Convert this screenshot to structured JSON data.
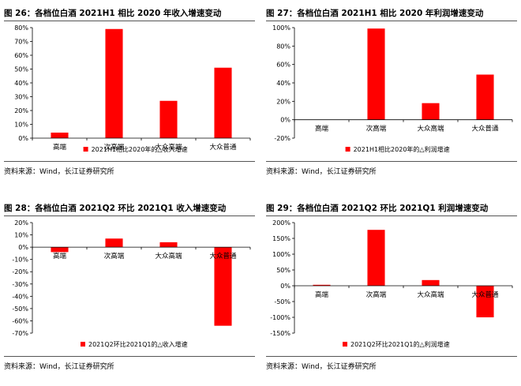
{
  "panels": [
    {
      "title": "图 26：各档位白酒 2021H1 相比 2020 年收入增速变动",
      "source": "资料来源：Wind，长江证券研究所",
      "chart_data": {
        "type": "bar",
        "categories": [
          "高端",
          "次高端",
          "大众高端",
          "大众普通"
        ],
        "series": [
          {
            "name": "2021H1相比2020年的△收入增速",
            "values": [
              4,
              79,
              27,
              51
            ],
            "color": "#ff0000"
          }
        ],
        "ylim": [
          0,
          80
        ],
        "yticks": [
          0,
          10,
          20,
          30,
          40,
          50,
          60,
          70,
          80
        ],
        "ytick_labels": [
          "0%",
          "10%",
          "20%",
          "30%",
          "40%",
          "50%",
          "60%",
          "70%",
          "80%"
        ],
        "legend": "bottom"
      }
    },
    {
      "title": "图 27：各档位白酒 2021H1 相比 2020 年利润增速变动",
      "source": "资料来源：Wind，长江证券研究所",
      "chart_data": {
        "type": "bar",
        "categories": [
          "高端",
          "次高端",
          "大众高端",
          "大众普通"
        ],
        "series": [
          {
            "name": "2021H1相比2020年的△利润增速",
            "values": [
              0,
              99,
              18,
              49
            ],
            "color": "#ff0000"
          }
        ],
        "ylim": [
          -20,
          100
        ],
        "yticks": [
          -20,
          0,
          20,
          40,
          60,
          80,
          100
        ],
        "ytick_labels": [
          "-20%",
          "0%",
          "20%",
          "40%",
          "60%",
          "80%",
          "100%"
        ],
        "legend": "bottom"
      }
    },
    {
      "title": "图 28：各档位白酒 2021Q2 环比 2021Q1 收入增速变动",
      "source": "资料来源：Wind，长江证券研究所",
      "chart_data": {
        "type": "bar",
        "categories": [
          "高端",
          "次高端",
          "大众高端",
          "大众普通"
        ],
        "series": [
          {
            "name": "2021Q2环比2021Q1的△收入增速",
            "values": [
              -4,
              7,
              4,
              -64
            ],
            "color": "#ff0000"
          }
        ],
        "ylim": [
          -70,
          20
        ],
        "yticks": [
          -70,
          -60,
          -50,
          -40,
          -30,
          -20,
          -10,
          0,
          10,
          20
        ],
        "ytick_labels": [
          "-70%",
          "-60%",
          "-50%",
          "-40%",
          "-30%",
          "-20%",
          "-10%",
          "0%",
          "10%",
          "20%"
        ],
        "legend": "bottom"
      }
    },
    {
      "title": "图 29：各档位白酒 2021Q2 环比 2021Q1 利润增速变动",
      "source": "资料来源：Wind，长江证券研究所",
      "chart_data": {
        "type": "bar",
        "categories": [
          "高端",
          "次高端",
          "大众高端",
          "大众普通"
        ],
        "series": [
          {
            "name": "2021Q2环比2021Q1的△利润增速",
            "values": [
              3,
              177,
              18,
              -100
            ],
            "color": "#ff0000"
          }
        ],
        "ylim": [
          -150,
          200
        ],
        "yticks": [
          -150,
          -100,
          -50,
          0,
          50,
          100,
          150,
          200
        ],
        "ytick_labels": [
          "-150%",
          "-100%",
          "-50%",
          "0%",
          "50%",
          "100%",
          "150%",
          "200%"
        ],
        "legend": "bottom"
      }
    }
  ]
}
